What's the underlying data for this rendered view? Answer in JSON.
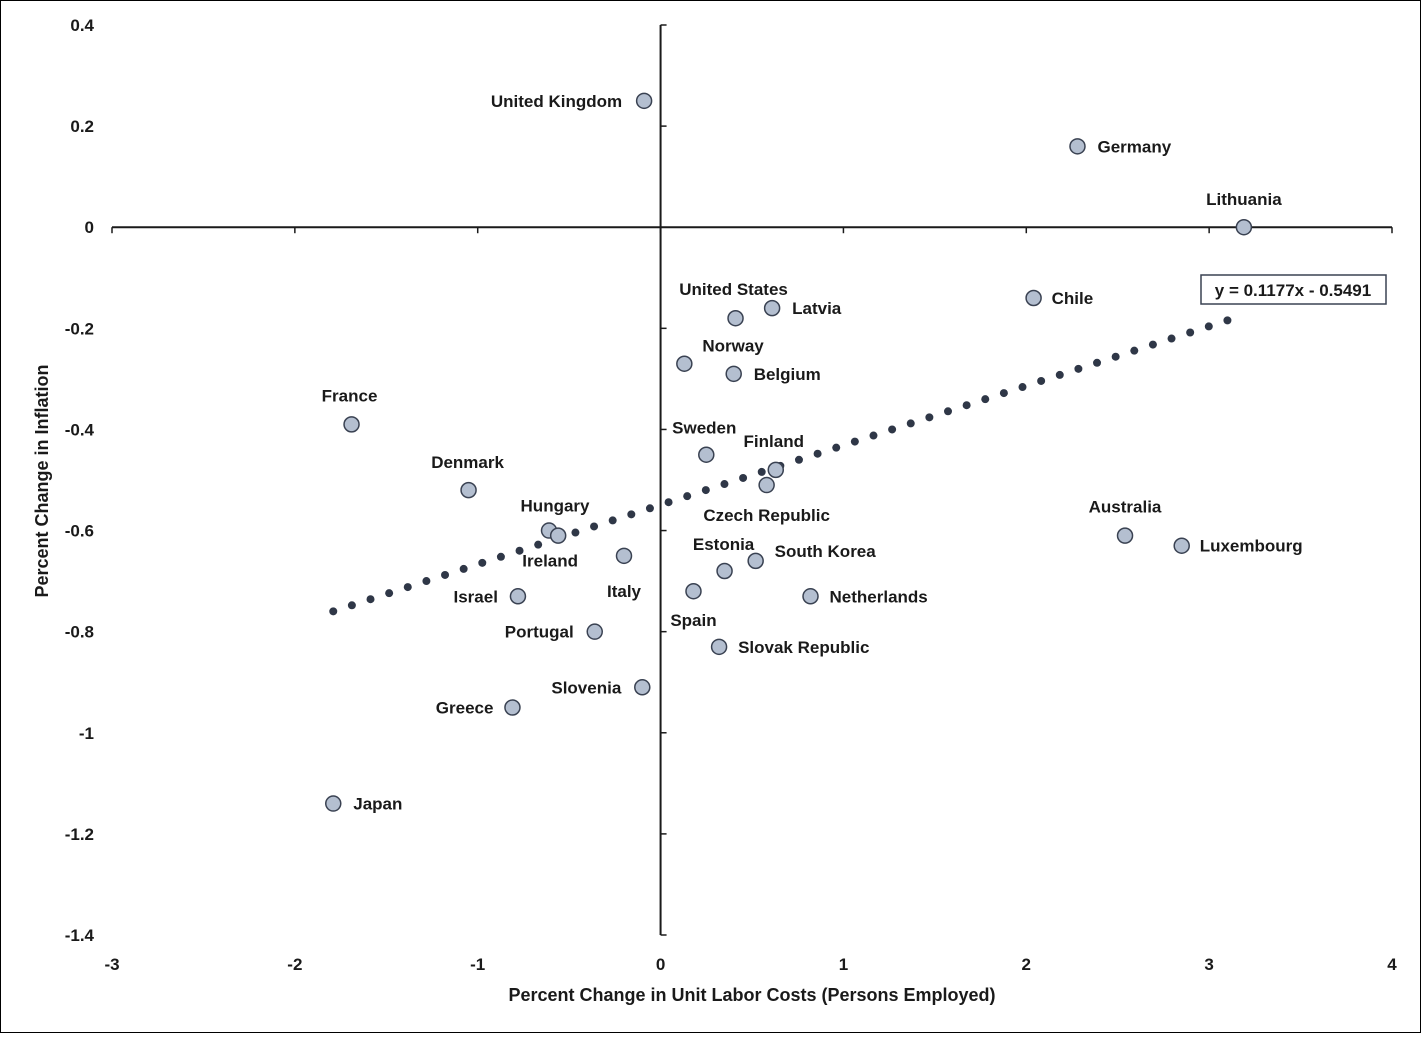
{
  "chart_data": {
    "type": "scatter",
    "title": "",
    "xlabel": "Percent Change in Unit Labor Costs (Persons Employed)",
    "ylabel": "Percent Change in Inflation",
    "xlim": [
      -3,
      4
    ],
    "ylim": [
      -1.4,
      0.4
    ],
    "xticks": [
      -3,
      -2,
      -1,
      0,
      1,
      2,
      3,
      4
    ],
    "yticks": [
      0.4,
      0.2,
      0,
      -0.2,
      -0.4,
      -0.6,
      -0.8,
      -1,
      -1.2,
      -1.4
    ],
    "xtick_labels": [
      "-3",
      "-2",
      "-1",
      "0",
      "1",
      "2",
      "3",
      "4"
    ],
    "ytick_labels": [
      "0.4",
      "0.2",
      "0",
      "-0.2",
      "-0.4",
      "-0.6",
      "-0.8",
      "-1",
      "-1.2",
      "-1.4"
    ],
    "grid": false,
    "legend": "none",
    "marker_color": "#b4bfd0",
    "marker_edge_color": "#3a4252",
    "trendline_color": "#2f3747",
    "points": [
      {
        "label": "United Kingdom",
        "x": -0.09,
        "y": 0.25
      },
      {
        "label": "Germany",
        "x": 2.28,
        "y": 0.16
      },
      {
        "label": "Lithuania",
        "x": 3.19,
        "y": 0.0
      },
      {
        "label": "Chile",
        "x": 2.04,
        "y": -0.14
      },
      {
        "label": "United States",
        "x": 0.41,
        "y": -0.18
      },
      {
        "label": "Latvia",
        "x": 0.61,
        "y": -0.16
      },
      {
        "label": "Norway",
        "x": 0.13,
        "y": -0.27
      },
      {
        "label": "Belgium",
        "x": 0.4,
        "y": -0.29
      },
      {
        "label": "France",
        "x": -1.69,
        "y": -0.39
      },
      {
        "label": "Sweden",
        "x": 0.25,
        "y": -0.45
      },
      {
        "label": "Finland",
        "x": 0.63,
        "y": -0.48
      },
      {
        "label": "Czech Republic",
        "x": 0.58,
        "y": -0.51
      },
      {
        "label": "Denmark",
        "x": -1.05,
        "y": -0.52
      },
      {
        "label": "Hungary",
        "x": -0.61,
        "y": -0.6
      },
      {
        "label": "Ireland",
        "x": -0.56,
        "y": -0.61
      },
      {
        "label": "Italy",
        "x": -0.2,
        "y": -0.65
      },
      {
        "label": "South Korea",
        "x": 0.52,
        "y": -0.66
      },
      {
        "label": "Estonia",
        "x": 0.35,
        "y": -0.68
      },
      {
        "label": "Australia",
        "x": 2.54,
        "y": -0.61
      },
      {
        "label": "Luxembourg",
        "x": 2.85,
        "y": -0.63
      },
      {
        "label": "Israel",
        "x": -0.78,
        "y": -0.73
      },
      {
        "label": "Spain",
        "x": 0.18,
        "y": -0.72
      },
      {
        "label": "Netherlands",
        "x": 0.82,
        "y": -0.73
      },
      {
        "label": "Portugal",
        "x": -0.36,
        "y": -0.8
      },
      {
        "label": "Slovak Republic",
        "x": 0.32,
        "y": -0.83
      },
      {
        "label": "Slovenia",
        "x": -0.1,
        "y": -0.91
      },
      {
        "label": "Greece",
        "x": -0.81,
        "y": -0.95
      },
      {
        "label": "Japan",
        "x": -1.79,
        "y": -1.14
      }
    ],
    "trendline": {
      "type": "linear",
      "slope": 0.1177,
      "intercept": -0.5491,
      "x_range": [
        -1.79,
        3.1
      ],
      "equation_label": "y = 0.1177x - 0.5491"
    }
  }
}
